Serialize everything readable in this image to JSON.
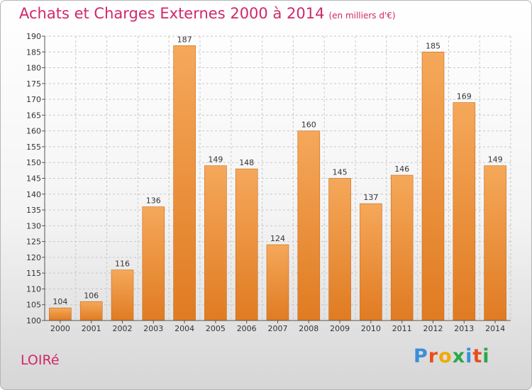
{
  "header": {
    "title": "Achats et Charges Externes 2000 à 2014",
    "unit": "(en milliers d'€)"
  },
  "footer": {
    "place": "LOIRé",
    "logo_letters": [
      "P",
      "r",
      "o",
      "x",
      "i",
      "t",
      "i"
    ],
    "logo_colors": [
      "#3a8fd8",
      "#e94e1b",
      "#f2a900",
      "#2aa84a",
      "#3a8fd8",
      "#e94e1b",
      "#2aa84a"
    ]
  },
  "colors": {
    "bar_top": "#f5a85a",
    "bar_bottom": "#e07b22",
    "bar_edge": "#c96a1a",
    "label": "#333333"
  },
  "chart_data": {
    "type": "bar",
    "categories": [
      "2000",
      "2001",
      "2002",
      "2003",
      "2004",
      "2005",
      "2006",
      "2007",
      "2008",
      "2009",
      "2010",
      "2011",
      "2012",
      "2013",
      "2014"
    ],
    "values": [
      104,
      106,
      116,
      136,
      187,
      149,
      148,
      124,
      160,
      145,
      137,
      146,
      185,
      169,
      149
    ],
    "title": "Achats et Charges Externes 2000 à 2014",
    "ylim": [
      100,
      190
    ],
    "yticks": [
      100,
      105,
      110,
      115,
      120,
      125,
      130,
      135,
      140,
      145,
      150,
      155,
      160,
      165,
      170,
      175,
      180,
      185,
      190
    ],
    "grid": true,
    "legend": "none"
  }
}
